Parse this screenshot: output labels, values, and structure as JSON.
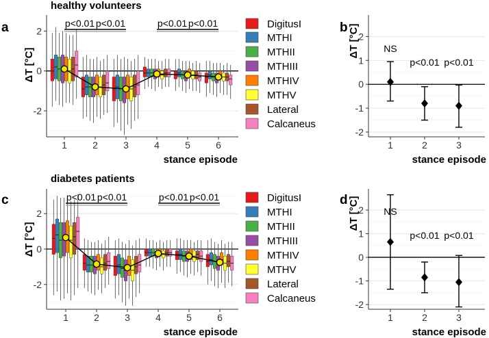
{
  "series_names": [
    "DigitusI",
    "MTHI",
    "MTHII",
    "MTHIII",
    "MTHIV",
    "MTHV",
    "Lateral",
    "Calcaneus"
  ],
  "colors": {
    "DigitusI": "#e41a1c",
    "MTHI": "#377eb8",
    "MTHII": "#4daf4a",
    "MTHIII": "#984ea3",
    "MTHIV": "#ff7f00",
    "MTHV": "#ffff33",
    "Lateral": "#a65628",
    "Calcaneus": "#f781bf",
    "mean_point": "#f5e600"
  },
  "chart_data": [
    {
      "type": "boxplot",
      "panel": "a",
      "title": "healthy volunteers",
      "xlabel": "stance episode",
      "ylabel": "ΔT [°C]",
      "ylim": [
        -3.3,
        2.8
      ],
      "yticks": [
        -2,
        0,
        2
      ],
      "xticks": [
        1,
        2,
        3,
        4,
        5,
        6
      ],
      "hline": 0,
      "mean_line": [
        0.1,
        -0.8,
        -0.9,
        -0.15,
        -0.2,
        -0.3
      ],
      "legend": [
        "DigitusI",
        "MTHI",
        "MTHII",
        "MTHIII",
        "MTHIV",
        "MTHV",
        "Lateral",
        "Calcaneus"
      ],
      "brackets": [
        {
          "from": 1,
          "to": 2,
          "label": "p<0.01",
          "label_pos": 1
        },
        {
          "from": 2,
          "to": 3,
          "label": "p<0.01",
          "label_pos": 2
        },
        {
          "from": 4,
          "to": 5,
          "label": "p<0.01",
          "label_pos": 4
        },
        {
          "from": 5,
          "to": 6,
          "label": "p<0.01",
          "label_pos": 5
        }
      ],
      "episodes": [
        {
          "median": [
            0.0,
            0.2,
            0.1,
            0.1,
            0.1,
            0.0,
            0.1,
            0.3
          ],
          "q1": [
            -0.5,
            -0.4,
            -0.5,
            -0.6,
            -0.5,
            -0.6,
            -0.5,
            -0.3
          ],
          "q3": [
            0.6,
            0.8,
            0.7,
            0.8,
            0.7,
            0.6,
            0.7,
            1.0
          ],
          "low": [
            -1.8,
            -1.5,
            -1.7,
            -1.8,
            -1.6,
            -1.6,
            -1.7,
            -1.4
          ],
          "high": [
            1.9,
            2.2,
            1.9,
            2.0,
            1.9,
            1.8,
            1.8,
            2.1
          ]
        },
        {
          "median": [
            -0.9,
            -0.8,
            -0.8,
            -0.9,
            -0.7,
            -0.8,
            -0.7,
            -0.6
          ],
          "q1": [
            -1.3,
            -1.2,
            -1.3,
            -1.3,
            -1.2,
            -1.3,
            -1.2,
            -1.0
          ],
          "q3": [
            -0.3,
            -0.2,
            -0.3,
            -0.3,
            -0.2,
            -0.3,
            -0.2,
            0.0
          ],
          "low": [
            -2.4,
            -2.3,
            -2.5,
            -2.6,
            -2.3,
            -2.4,
            -2.2,
            -2.1
          ],
          "high": [
            0.7,
            0.8,
            0.6,
            0.6,
            0.7,
            0.5,
            0.6,
            0.8
          ]
        },
        {
          "median": [
            -0.9,
            -0.8,
            -0.9,
            -1.0,
            -0.8,
            -0.9,
            -0.8,
            -0.7
          ],
          "q1": [
            -1.5,
            -1.4,
            -1.5,
            -1.6,
            -1.4,
            -1.5,
            -1.3,
            -1.2
          ],
          "q3": [
            -0.3,
            -0.2,
            -0.3,
            -0.3,
            -0.2,
            -0.3,
            -0.2,
            0.0
          ],
          "low": [
            -2.8,
            -2.6,
            -3.0,
            -3.2,
            -2.7,
            -2.9,
            -2.5,
            -2.4
          ],
          "high": [
            0.6,
            0.8,
            0.6,
            0.7,
            0.6,
            0.5,
            0.6,
            0.8
          ]
        },
        {
          "median": [
            -0.1,
            -0.1,
            -0.1,
            -0.2,
            -0.1,
            -0.2,
            -0.1,
            -0.1
          ],
          "q1": [
            -0.3,
            -0.3,
            -0.3,
            -0.4,
            -0.3,
            -0.4,
            -0.3,
            -0.3
          ],
          "q3": [
            0.2,
            0.1,
            0.1,
            0.1,
            0.1,
            0.0,
            0.1,
            0.1
          ],
          "low": [
            -0.9,
            -0.8,
            -0.9,
            -1.0,
            -0.8,
            -0.9,
            -0.8,
            -0.8
          ],
          "high": [
            0.7,
            0.6,
            0.6,
            0.6,
            0.5,
            0.5,
            0.6,
            0.6
          ]
        },
        {
          "median": [
            -0.2,
            -0.1,
            -0.2,
            -0.2,
            -0.1,
            -0.2,
            -0.2,
            -0.3
          ],
          "q1": [
            -0.4,
            -0.3,
            -0.4,
            -0.5,
            -0.3,
            -0.4,
            -0.4,
            -0.5
          ],
          "q3": [
            0.0,
            0.1,
            0.0,
            0.0,
            0.1,
            0.0,
            0.0,
            -0.1
          ],
          "low": [
            -1.0,
            -0.8,
            -1.0,
            -1.1,
            -0.9,
            -1.0,
            -1.0,
            -1.1
          ],
          "high": [
            0.6,
            0.6,
            0.5,
            0.5,
            0.5,
            0.4,
            0.5,
            0.4
          ]
        },
        {
          "median": [
            -0.3,
            -0.2,
            -0.3,
            -0.3,
            -0.2,
            -0.3,
            -0.3,
            -0.4
          ],
          "q1": [
            -0.6,
            -0.4,
            -0.5,
            -0.6,
            -0.4,
            -0.5,
            -0.5,
            -0.7
          ],
          "q3": [
            -0.1,
            0.0,
            -0.1,
            -0.1,
            0.0,
            -0.1,
            -0.1,
            -0.2
          ],
          "low": [
            -1.3,
            -1.1,
            -1.2,
            -1.3,
            -1.1,
            -1.2,
            -1.2,
            -1.4
          ],
          "high": [
            0.5,
            0.5,
            0.4,
            0.4,
            0.4,
            0.3,
            0.4,
            0.3
          ]
        }
      ]
    },
    {
      "type": "pointrange",
      "panel": "b",
      "xlabel": "stance episode",
      "ylabel": "ΔT [°C]",
      "ylim": [
        -2.2,
        2.9
      ],
      "yticks": [
        -2,
        -1,
        0,
        1,
        2
      ],
      "x": [
        1,
        2,
        3
      ],
      "mean": [
        0.1,
        -0.8,
        -0.9
      ],
      "lower": [
        -0.7,
        -1.5,
        -1.8
      ],
      "upper": [
        0.95,
        -0.1,
        -0.03
      ],
      "labels": [
        "NS",
        "p<0.01",
        "p<0.01"
      ]
    },
    {
      "type": "boxplot",
      "panel": "c",
      "title": "diabetes patients",
      "xlabel": "stance episode",
      "ylabel": "ΔT [°C]",
      "ylim": [
        -3.4,
        3.4
      ],
      "yticks": [
        -2,
        0,
        2
      ],
      "xticks": [
        1,
        2,
        3,
        4,
        5,
        6
      ],
      "hline": 0,
      "mean_line": [
        0.65,
        -0.85,
        -1.05,
        -0.25,
        -0.4,
        -0.75
      ],
      "legend": [
        "DigitusI",
        "MTHI",
        "MTHII",
        "MTHIII",
        "MTHIV",
        "MTHV",
        "Lateral",
        "Calcaneus"
      ],
      "brackets": [
        {
          "from": 1,
          "to": 2,
          "label": "p<0.01",
          "label_pos": 1
        },
        {
          "from": 2,
          "to": 3,
          "label": "p<0.01",
          "label_pos": 2
        },
        {
          "from": 4,
          "to": 5,
          "label": "p<0.01",
          "label_pos": 4
        },
        {
          "from": 5,
          "to": 6,
          "label": "p<0.01",
          "label_pos": 5
        }
      ],
      "episodes": [
        {
          "median": [
            0.6,
            0.8,
            0.5,
            0.6,
            0.7,
            0.5,
            0.7,
            1.0
          ],
          "q1": [
            -0.3,
            -0.2,
            -0.5,
            -0.4,
            -0.2,
            -0.5,
            -0.3,
            0.0
          ],
          "q3": [
            1.4,
            1.7,
            1.5,
            1.5,
            1.6,
            1.3,
            1.5,
            1.8
          ],
          "low": [
            -2.6,
            -2.4,
            -2.9,
            -2.8,
            -2.5,
            -2.9,
            -2.6,
            -2.2
          ],
          "high": [
            2.8,
            3.0,
            2.9,
            2.9,
            3.0,
            2.7,
            2.8,
            3.1
          ]
        },
        {
          "median": [
            -0.8,
            -0.9,
            -0.9,
            -1.0,
            -0.8,
            -1.0,
            -0.8,
            -0.7
          ],
          "q1": [
            -1.2,
            -1.3,
            -1.3,
            -1.4,
            -1.2,
            -1.4,
            -1.2,
            -1.1
          ],
          "q3": [
            -0.3,
            -0.4,
            -0.4,
            -0.4,
            -0.3,
            -0.5,
            -0.3,
            -0.2
          ],
          "low": [
            -2.2,
            -2.4,
            -2.5,
            -2.6,
            -2.3,
            -2.5,
            -2.2,
            -2.0
          ],
          "high": [
            0.6,
            0.5,
            0.4,
            0.4,
            0.5,
            0.3,
            0.5,
            0.7
          ]
        },
        {
          "median": [
            -1.0,
            -0.9,
            -1.1,
            -1.2,
            -1.0,
            -1.2,
            -1.0,
            -0.9
          ],
          "q1": [
            -1.5,
            -1.4,
            -1.6,
            -1.8,
            -1.5,
            -1.8,
            -1.4,
            -1.3
          ],
          "q3": [
            -0.4,
            -0.3,
            -0.5,
            -0.6,
            -0.4,
            -0.6,
            -0.4,
            -0.3
          ],
          "low": [
            -2.8,
            -2.6,
            -3.0,
            -3.2,
            -2.8,
            -3.2,
            -2.7,
            -2.5
          ],
          "high": [
            0.5,
            0.6,
            0.4,
            0.3,
            0.5,
            0.2,
            0.5,
            0.6
          ]
        },
        {
          "median": [
            -0.2,
            -0.2,
            -0.2,
            -0.3,
            -0.2,
            -0.3,
            -0.2,
            -0.2
          ],
          "q1": [
            -0.4,
            -0.4,
            -0.4,
            -0.5,
            -0.4,
            -0.5,
            -0.4,
            -0.4
          ],
          "q3": [
            0.0,
            0.0,
            0.0,
            -0.1,
            0.0,
            -0.1,
            0.0,
            0.0
          ],
          "low": [
            -1.0,
            -1.0,
            -1.1,
            -1.2,
            -1.0,
            -1.2,
            -1.0,
            -1.0
          ],
          "high": [
            0.6,
            0.5,
            0.5,
            0.4,
            0.5,
            0.4,
            0.5,
            0.5
          ]
        },
        {
          "median": [
            -0.3,
            -0.3,
            -0.4,
            -0.4,
            -0.3,
            -0.4,
            -0.3,
            -0.4
          ],
          "q1": [
            -0.6,
            -0.6,
            -0.7,
            -0.7,
            -0.6,
            -0.7,
            -0.6,
            -0.7
          ],
          "q3": [
            -0.1,
            0.0,
            -0.1,
            -0.1,
            0.0,
            -0.1,
            -0.1,
            -0.1
          ],
          "low": [
            -1.4,
            -1.3,
            -1.5,
            -1.6,
            -1.4,
            -1.5,
            -1.3,
            -1.5
          ],
          "high": [
            0.6,
            0.6,
            0.5,
            0.5,
            0.5,
            0.4,
            0.5,
            0.5
          ]
        },
        {
          "median": [
            -0.7,
            -0.6,
            -0.7,
            -0.8,
            -0.6,
            -0.8,
            -0.7,
            -0.8
          ],
          "q1": [
            -1.0,
            -0.9,
            -1.1,
            -1.2,
            -0.9,
            -1.2,
            -1.0,
            -1.2
          ],
          "q3": [
            -0.3,
            -0.2,
            -0.3,
            -0.4,
            -0.2,
            -0.4,
            -0.3,
            -0.4
          ],
          "low": [
            -2.0,
            -1.8,
            -2.1,
            -2.2,
            -1.9,
            -2.2,
            -1.9,
            -2.1
          ],
          "high": [
            0.5,
            0.6,
            0.4,
            0.3,
            0.5,
            0.3,
            0.4,
            0.4
          ]
        }
      ]
    },
    {
      "type": "pointrange",
      "panel": "d",
      "xlabel": "stance episode",
      "ylabel": "ΔT [°C]",
      "ylim": [
        -2.2,
        2.9
      ],
      "yticks": [
        -2,
        -1,
        0,
        1,
        2
      ],
      "x": [
        1,
        2,
        3
      ],
      "mean": [
        0.65,
        -0.85,
        -1.05
      ],
      "lower": [
        -1.35,
        -1.5,
        -2.1
      ],
      "upper": [
        2.65,
        -0.2,
        0.08
      ],
      "labels": [
        "NS",
        "p<0.01",
        "p<0.01"
      ]
    }
  ]
}
